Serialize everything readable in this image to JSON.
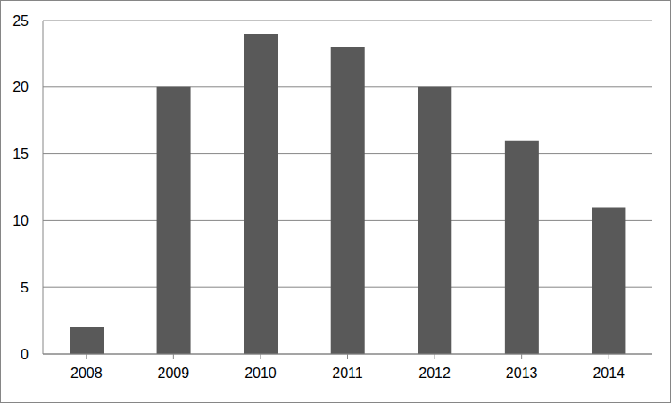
{
  "chart_data": {
    "type": "bar",
    "categories": [
      "2008",
      "2009",
      "2010",
      "2011",
      "2012",
      "2013",
      "2014"
    ],
    "values": [
      2,
      20,
      24,
      23,
      20,
      16,
      11
    ],
    "color": "#595959",
    "ylim": [
      0,
      25
    ],
    "yticks": [
      0,
      5,
      10,
      15,
      20,
      25
    ],
    "grid": true
  }
}
